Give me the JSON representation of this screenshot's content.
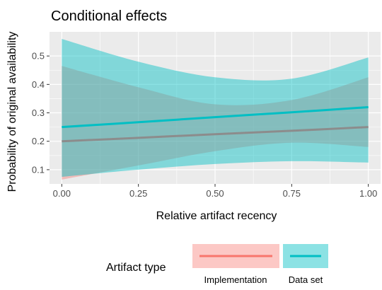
{
  "chart_data": {
    "type": "line",
    "title": "Conditional effects",
    "xlabel": "Relative artifact recency",
    "ylabel": "Probability of original availability",
    "xlim": [
      -0.04,
      1.04
    ],
    "ylim": [
      0.05,
      0.585
    ],
    "x_ticks": [
      0.0,
      0.25,
      0.5,
      0.75,
      1.0
    ],
    "x_tick_labels": [
      "0.00",
      "0.25",
      "0.50",
      "0.75",
      "1.00"
    ],
    "y_ticks": [
      0.1,
      0.2,
      0.3,
      0.4,
      0.5
    ],
    "y_tick_labels": [
      "0.1",
      "0.2",
      "0.3",
      "0.4",
      "0.5"
    ],
    "grid": true,
    "legend_position": "bottom",
    "legend_title": "Artifact type",
    "x": [
      0.0,
      0.25,
      0.5,
      0.75,
      1.0
    ],
    "series": [
      {
        "name": "Implementation",
        "color": "#F8766D",
        "values": [
          0.2,
          0.212,
          0.225,
          0.237,
          0.25
        ],
        "lower": [
          0.065,
          0.115,
          0.165,
          0.195,
          0.18
        ],
        "upper": [
          0.465,
          0.39,
          0.33,
          0.345,
          0.425
        ]
      },
      {
        "name": "Data set",
        "color": "#00BFC4",
        "values": [
          0.25,
          0.267,
          0.285,
          0.302,
          0.32
        ],
        "lower": [
          0.075,
          0.1,
          0.12,
          0.13,
          0.125
        ],
        "upper": [
          0.56,
          0.48,
          0.425,
          0.42,
          0.495
        ]
      }
    ]
  }
}
